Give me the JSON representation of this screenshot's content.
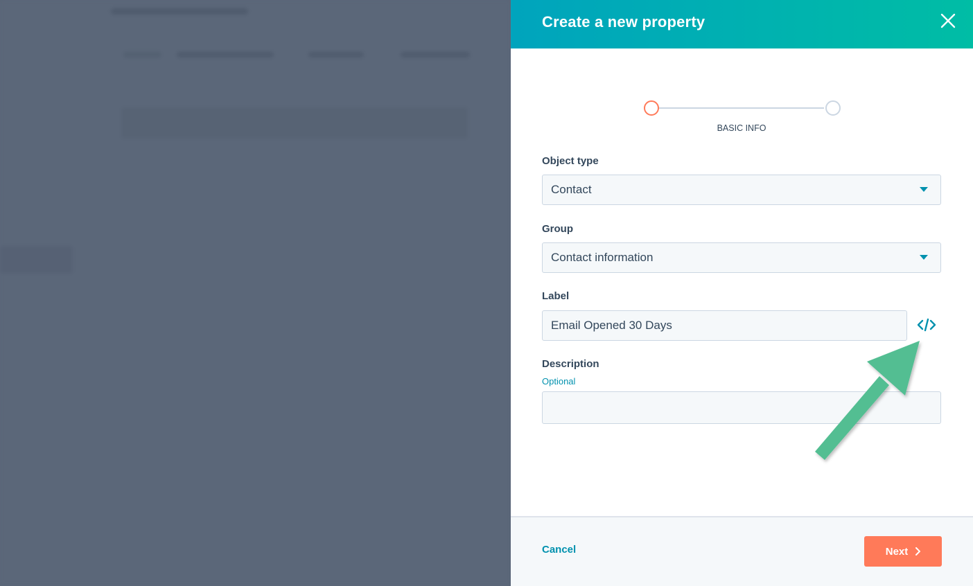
{
  "modal": {
    "title": "Create a new property",
    "close_icon": "close-icon",
    "stepper": {
      "steps": 2,
      "current_step": 1,
      "current_label": "BASIC INFO",
      "active_color": "#ff7a59",
      "inactive_color": "#cbd6e2"
    },
    "fields": {
      "object_type": {
        "label": "Object type",
        "value": "Contact"
      },
      "group": {
        "label": "Group",
        "value": "Contact information"
      },
      "label": {
        "label": "Label",
        "value": "Email Opened 30 Days",
        "icon": "code-icon"
      },
      "description": {
        "label": "Description",
        "hint": "Optional",
        "value": ""
      }
    },
    "footer": {
      "cancel_label": "Cancel",
      "next_label": "Next"
    }
  },
  "colors": {
    "header_gradient_start": "#00a4bd",
    "header_gradient_end": "#00bda5",
    "accent": "#0091ae",
    "primary_button": "#ff7a59",
    "annotation_arrow": "#52be92"
  }
}
